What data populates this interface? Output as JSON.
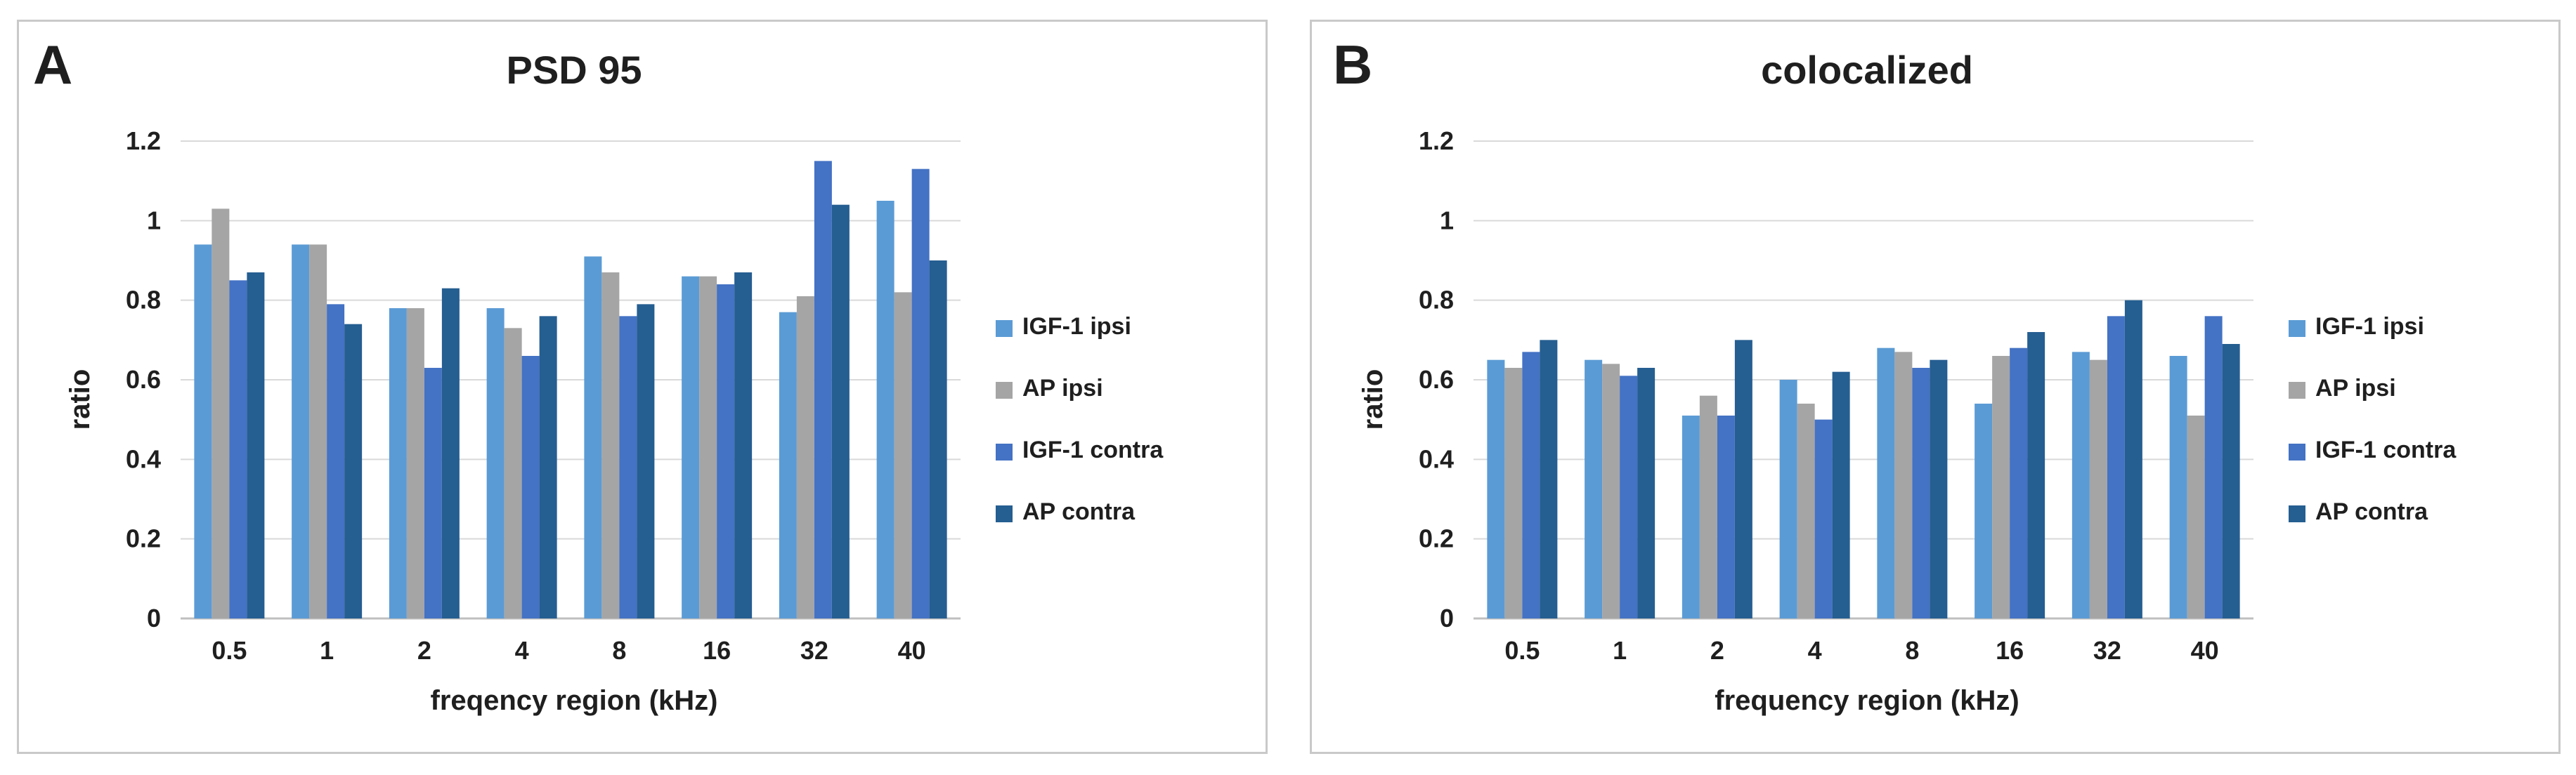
{
  "chart_data": [
    {
      "panel_label": "A",
      "type": "bar",
      "title": "PSD 95",
      "xlabel": "freqency region (kHz)",
      "ylabel": "ratio",
      "ylim": [
        0,
        1.2
      ],
      "yticks": [
        "0",
        "0.2",
        "0.4",
        "0.6",
        "0.8",
        "1",
        "1.2"
      ],
      "categories": [
        "0.5",
        "1",
        "2",
        "4",
        "8",
        "16",
        "32",
        "40"
      ],
      "grid": true,
      "legend_position": "right",
      "series": [
        {
          "name": "IGF-1 ipsi",
          "color": "#5b9bd5",
          "values": [
            0.94,
            0.94,
            0.78,
            0.78,
            0.91,
            0.86,
            0.77,
            1.05
          ]
        },
        {
          "name": "AP ipsi",
          "color": "#a5a5a5",
          "values": [
            1.03,
            0.94,
            0.78,
            0.73,
            0.87,
            0.86,
            0.81,
            0.82
          ]
        },
        {
          "name": "IGF-1 contra",
          "color": "#4472c4",
          "values": [
            0.85,
            0.79,
            0.63,
            0.66,
            0.76,
            0.84,
            1.15,
            1.13
          ]
        },
        {
          "name": "AP contra",
          "color": "#255e91",
          "values": [
            0.87,
            0.74,
            0.83,
            0.76,
            0.79,
            0.87,
            1.04,
            0.9
          ]
        }
      ]
    },
    {
      "panel_label": "B",
      "type": "bar",
      "title": "colocalized",
      "xlabel": "frequency region (kHz)",
      "ylabel": "ratio",
      "ylim": [
        0,
        1.2
      ],
      "yticks": [
        "0",
        "0.2",
        "0.4",
        "0.6",
        "0.8",
        "1",
        "1.2"
      ],
      "categories": [
        "0.5",
        "1",
        "2",
        "4",
        "8",
        "16",
        "32",
        "40"
      ],
      "grid": true,
      "legend_position": "right",
      "series": [
        {
          "name": "IGF-1 ipsi",
          "color": "#5b9bd5",
          "values": [
            0.65,
            0.65,
            0.51,
            0.6,
            0.68,
            0.54,
            0.67,
            0.66
          ]
        },
        {
          "name": "AP ipsi",
          "color": "#a5a5a5",
          "values": [
            0.63,
            0.64,
            0.56,
            0.54,
            0.67,
            0.66,
            0.65,
            0.51
          ]
        },
        {
          "name": "IGF-1 contra",
          "color": "#4472c4",
          "values": [
            0.67,
            0.61,
            0.51,
            0.5,
            0.63,
            0.68,
            0.76,
            0.76
          ]
        },
        {
          "name": "AP contra",
          "color": "#255e91",
          "values": [
            0.7,
            0.63,
            0.7,
            0.62,
            0.65,
            0.72,
            0.8,
            0.69
          ]
        }
      ]
    }
  ]
}
